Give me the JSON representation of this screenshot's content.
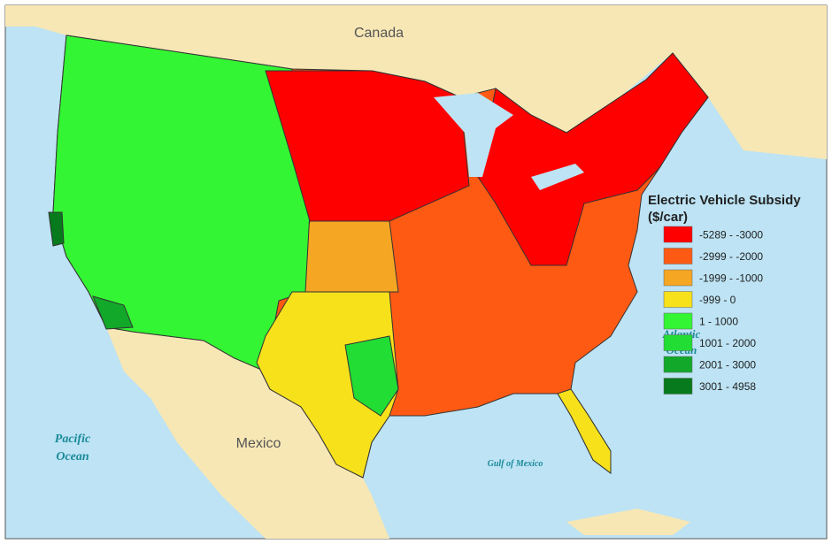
{
  "map": {
    "labels": {
      "canada": "Canada",
      "mexico": "Mexico",
      "pacific": [
        "Pacific",
        "Ocean"
      ],
      "gulf": "Gulf of Mexico",
      "atlantic": [
        "Atlantic",
        "Ocean"
      ]
    },
    "legend": {
      "title": [
        "Electric Vehicle Subsidy",
        "($/car)"
      ],
      "items": [
        {
          "label": "-5289 - -3000",
          "color": "#ff0000"
        },
        {
          "label": "-2999 - -2000",
          "color": "#ff5a14"
        },
        {
          "label": "-1999 - -1000",
          "color": "#f5a623"
        },
        {
          "label": "-999 - 0",
          "color": "#f7e11b"
        },
        {
          "label": "1 - 1000",
          "color": "#33f533"
        },
        {
          "label": "1001 - 2000",
          "color": "#22dd33"
        },
        {
          "label": "2001 - 3000",
          "color": "#12a82a"
        },
        {
          "label": "3001 - 4958",
          "color": "#067a1c"
        }
      ]
    }
  }
}
